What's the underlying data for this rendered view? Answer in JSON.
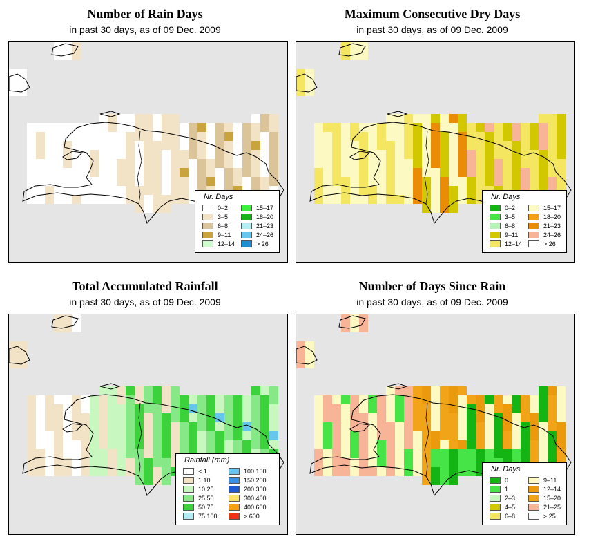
{
  "panels": [
    {
      "id": "rain-days",
      "title": "Number of Rain Days",
      "subtitle": "in past 30 days, as of  09 Dec. 2009",
      "legend": {
        "title": "Nr. Days",
        "items": [
          {
            "label": "0–2",
            "color": "#ffffff"
          },
          {
            "label": "3–5",
            "color": "#f2e2c6"
          },
          {
            "label": "6–8",
            "color": "#dcc49a"
          },
          {
            "label": "9–11",
            "color": "#c9a33e"
          },
          {
            "label": "12–14",
            "color": "#cdfccd"
          },
          {
            "label": "15–17",
            "color": "#3ef03e"
          },
          {
            "label": "18–20",
            "color": "#18b418"
          },
          {
            "label": "21–23",
            "color": "#b4ecf4"
          },
          {
            "label": "24–26",
            "color": "#66c6ee"
          },
          {
            "label": "> 26",
            "color": "#1e8ed2"
          }
        ]
      }
    },
    {
      "id": "max-dry-days",
      "title": "Maximum Consecutive Dry Days",
      "subtitle": "in past 30 days, as of  09 Dec. 2009",
      "legend": {
        "title": "Nr. Days",
        "items": [
          {
            "label": "0–2",
            "color": "#14b414"
          },
          {
            "label": "3–5",
            "color": "#46e446"
          },
          {
            "label": "6–8",
            "color": "#b4f4b4"
          },
          {
            "label": "9–11",
            "color": "#d2c800"
          },
          {
            "label": "12–14",
            "color": "#f4e660"
          },
          {
            "label": "15–17",
            "color": "#fcfac2"
          },
          {
            "label": "18–20",
            "color": "#f5a012"
          },
          {
            "label": "21–23",
            "color": "#ea8c06"
          },
          {
            "label": "24–26",
            "color": "#f8b496"
          },
          {
            "label": "> 26",
            "color": "#ffffff"
          }
        ]
      }
    },
    {
      "id": "total-rainfall",
      "title": "Total Accumulated Rainfall",
      "subtitle": "in past 30 days, as of  09 Dec. 2009",
      "legend": {
        "title": "Rainfall (mm)",
        "items": [
          {
            "label": "< 1",
            "color": "#ffffff"
          },
          {
            "label": "1   10",
            "color": "#f2e2c6"
          },
          {
            "label": "10   25",
            "color": "#c8f8c0"
          },
          {
            "label": "25   50",
            "color": "#86e886"
          },
          {
            "label": "50   75",
            "color": "#3cd23c"
          },
          {
            "label": "75   100",
            "color": "#b4ecf4"
          },
          {
            "label": "100  150",
            "color": "#66c6ee"
          },
          {
            "label": "150  200",
            "color": "#3a8fe0"
          },
          {
            "label": "200  300",
            "color": "#1e5ad2"
          },
          {
            "label": "300  400",
            "color": "#fae266"
          },
          {
            "label": "400  600",
            "color": "#f5a012"
          },
          {
            "label": "> 600",
            "color": "#f03214"
          }
        ]
      }
    },
    {
      "id": "days-since-rain",
      "title": "Number of Days Since Rain",
      "subtitle": "in past 30 days, as of  09 Dec. 2009",
      "legend": {
        "title": "Nr. Days",
        "items": [
          {
            "label": "0",
            "color": "#14b414"
          },
          {
            "label": "1",
            "color": "#46e446"
          },
          {
            "label": "2–3",
            "color": "#c8f8c0"
          },
          {
            "label": "4–5",
            "color": "#d2c800"
          },
          {
            "label": "6–8",
            "color": "#f4e660"
          },
          {
            "label": "9–11",
            "color": "#fcfac2"
          },
          {
            "label": "12–14",
            "color": "#ea9a0c"
          },
          {
            "label": "15–20",
            "color": "#f2a418"
          },
          {
            "label": "21–25",
            "color": "#f8b496"
          },
          {
            "label": "> 25",
            "color": "#ffffff"
          }
        ]
      }
    }
  ]
}
